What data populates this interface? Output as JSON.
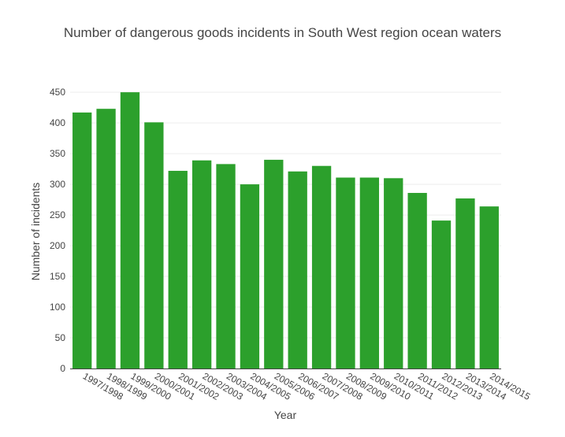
{
  "chart_data": {
    "type": "bar",
    "title": "Number of dangerous goods incidents in South West region ocean waters",
    "xlabel": "Year",
    "ylabel": "Number of incidents",
    "categories": [
      "1997/1998",
      "1998/1999",
      "1999/2000",
      "2000/2001",
      "2001/2002",
      "2002/2003",
      "2003/2004",
      "2004/2005",
      "2005/2006",
      "2006/2007",
      "2007/2008",
      "2008/2009",
      "2009/2010",
      "2010/2011",
      "2011/2012",
      "2012/2013",
      "2013/2014",
      "2014/2015"
    ],
    "values": [
      417,
      423,
      450,
      401,
      322,
      339,
      333,
      300,
      340,
      321,
      330,
      311,
      311,
      310,
      286,
      241,
      277,
      264
    ],
    "ylim": [
      0,
      472
    ],
    "yticks": [
      0,
      50,
      100,
      150,
      200,
      250,
      300,
      350,
      400,
      450
    ],
    "grid": true,
    "legend": "none",
    "colors": {
      "bar": "#2ca02c",
      "grid": "#eeeeee",
      "text": "#444444",
      "axis": "#444444"
    }
  }
}
